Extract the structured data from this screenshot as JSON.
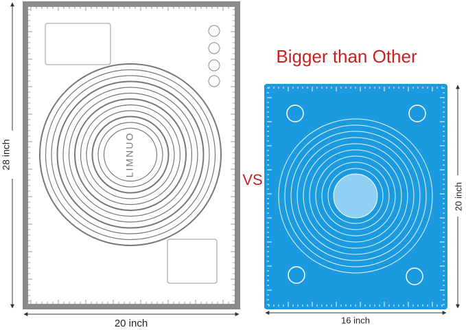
{
  "headline": "Bigger than Other",
  "versus": "VS",
  "left_mat": {
    "brand": "LIMNUO",
    "height_label": "28 inch",
    "width_label": "20 inch"
  },
  "right_mat": {
    "height_label": "20 inch",
    "width_label": "16 inch"
  }
}
